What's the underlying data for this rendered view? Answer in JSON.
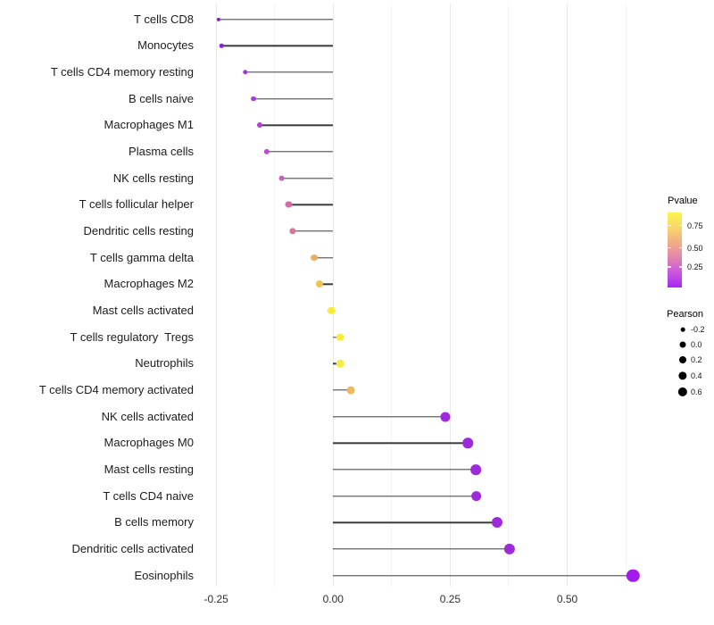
{
  "chart_data": {
    "type": "lollipop",
    "title": "",
    "xlabel": "",
    "ylabel": "",
    "x_axis": {
      "ticks": [
        -0.25,
        0.0,
        0.25,
        0.5
      ],
      "tick_labels": [
        "-0.25",
        "0.00",
        "0.25",
        "0.50"
      ],
      "minor_ticks": [
        -0.125,
        0.125,
        0.375,
        0.625
      ],
      "range": [
        -0.283,
        0.661
      ],
      "grid": "on"
    },
    "color_encoding": "Pvalue (purple = low, yellow = high)",
    "size_encoding": "Pearson correlation",
    "rows": [
      {
        "label": "T cells CD8",
        "pearson": -0.245,
        "color": "#7e22cc"
      },
      {
        "label": "Monocytes",
        "pearson": -0.238,
        "color": "#8a25d3"
      },
      {
        "label": "T cells CD4 memory resting",
        "pearson": -0.188,
        "color": "#a136d9"
      },
      {
        "label": "B cells naive",
        "pearson": -0.17,
        "color": "#a83bd5"
      },
      {
        "label": "Macrophages M1",
        "pearson": -0.157,
        "color": "#b043d3"
      },
      {
        "label": "Plasma cells",
        "pearson": -0.142,
        "color": "#bb4dc9"
      },
      {
        "label": "NK cells resting",
        "pearson": -0.11,
        "color": "#c75fb7"
      },
      {
        "label": "T cells follicular helper",
        "pearson": -0.095,
        "color": "#d06ca5"
      },
      {
        "label": "Dendritic cells resting",
        "pearson": -0.087,
        "color": "#d4779b"
      },
      {
        "label": "T cells gamma delta",
        "pearson": -0.041,
        "color": "#eaaf5e"
      },
      {
        "label": "Macrophages M2",
        "pearson": -0.03,
        "color": "#efc254"
      },
      {
        "label": "Mast cells activated",
        "pearson": -0.004,
        "color": "#f8ec3b"
      },
      {
        "label": "T cells regulatory  Tregs",
        "pearson": 0.015,
        "color": "#f7ec41"
      },
      {
        "label": "Neutrophils",
        "pearson": 0.015,
        "color": "#f7ec41"
      },
      {
        "label": "T cells CD4 memory activated",
        "pearson": 0.037,
        "color": "#ecba5c"
      },
      {
        "label": "NK cells activated",
        "pearson": 0.24,
        "color": "#9e2ada"
      },
      {
        "label": "Macrophages M0",
        "pearson": 0.288,
        "color": "#9e2ada"
      },
      {
        "label": "Mast cells resting",
        "pearson": 0.305,
        "color": "#9e2ada"
      },
      {
        "label": "T cells CD4 naive",
        "pearson": 0.306,
        "color": "#9e2ada"
      },
      {
        "label": "B cells memory",
        "pearson": 0.351,
        "color": "#9e2ada"
      },
      {
        "label": "Dendritic cells activated",
        "pearson": 0.377,
        "color": "#9e2ada"
      },
      {
        "label": "Eosinophils",
        "pearson": 0.641,
        "color": "#a21beb"
      }
    ]
  },
  "legend": {
    "pvalue": {
      "title": "Pvalue",
      "tick_labels": [
        "0.75",
        "0.50",
        "0.25"
      ],
      "gradient_top_color": "#fbf64b",
      "gradient_bottom_color": "#a726f2"
    },
    "pearson": {
      "title": "Pearson",
      "entries": [
        {
          "label": "-0.2",
          "diameter": 4.7
        },
        {
          "label": "0.0",
          "diameter": 7.0
        },
        {
          "label": "0.2",
          "diameter": 8.0
        },
        {
          "label": "0.4",
          "diameter": 9.3
        },
        {
          "label": "0.6",
          "diameter": 10.3
        }
      ]
    }
  }
}
